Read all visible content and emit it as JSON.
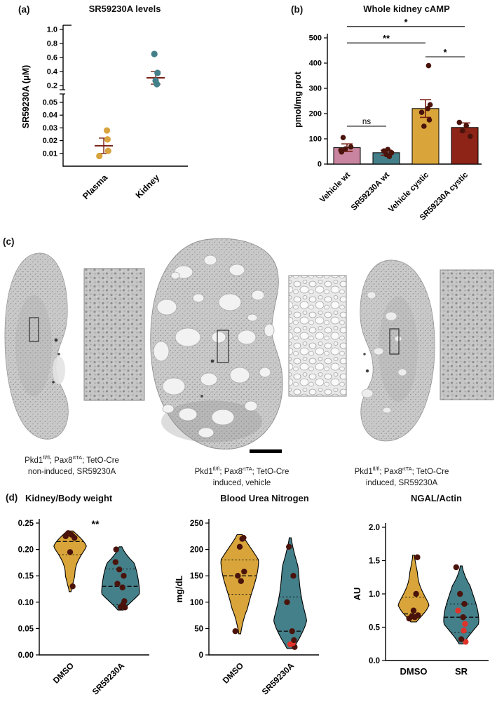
{
  "panels": {
    "a": "(a)",
    "b": "(b)",
    "c": "(c)",
    "d": "(d)"
  },
  "chart_data": [
    {
      "id": "a_levels",
      "type": "scatter",
      "title": "SR59230A levels",
      "ylabel": "SR59230A (μM)",
      "categories": [
        "Plasma",
        "Kidney"
      ],
      "axis_break": {
        "lower_ticks": [
          0.01,
          0.02,
          0.03,
          0.04,
          0.05
        ],
        "upper_ticks": [
          0.2,
          0.4,
          0.6,
          0.8,
          1.0
        ]
      },
      "series": [
        {
          "name": "Plasma",
          "color": "#D9A43F",
          "values": [
            0.008,
            0.012,
            0.021,
            0.028
          ],
          "mean": 0.016,
          "sem": 0.006
        },
        {
          "name": "Kidney",
          "color": "#44808A",
          "values": [
            0.22,
            0.27,
            0.38,
            0.65
          ],
          "mean": 0.31,
          "sem": 0.09
        }
      ]
    },
    {
      "id": "b_camp",
      "type": "bar",
      "title": "Whole kidney cAMP",
      "ylabel": "pmol/mg prot",
      "ylim": [
        0,
        500
      ],
      "yticks": [
        0,
        100,
        200,
        300,
        400,
        500
      ],
      "categories": [
        "Vehicle wt",
        "SR59230A wt",
        "Vehicle cystic",
        "SR59230A cystic"
      ],
      "bar_colors": [
        "#C9849F",
        "#44808A",
        "#D9A53A",
        "#8E2418"
      ],
      "values": [
        65,
        45,
        220,
        145
      ],
      "errors": [
        15,
        10,
        35,
        18
      ],
      "points": [
        [
          48,
          55,
          60,
          68,
          105
        ],
        [
          30,
          38,
          45,
          52,
          58
        ],
        [
          150,
          175,
          205,
          220,
          235,
          390
        ],
        [
          110,
          132,
          152,
          165
        ]
      ],
      "point_color": "#4A130B",
      "significance": [
        {
          "label": "*",
          "from": 0,
          "to": 3,
          "level": 545
        },
        {
          "label": "**",
          "from": 0,
          "to": 2,
          "level": 480
        },
        {
          "label": "*",
          "from": 2,
          "to": 3,
          "level": 425
        },
        {
          "label": "ns",
          "from": 0,
          "to": 1,
          "level": 150
        }
      ]
    },
    {
      "id": "d_kbw",
      "type": "violin",
      "title": "Kidney/Body weight",
      "ylabel": "",
      "ylim": [
        0,
        0.25
      ],
      "yticks": [
        0,
        0.05,
        0.1,
        0.15,
        0.2,
        0.25
      ],
      "tick_decimals": 2,
      "categories": [
        "DMSO",
        "SR59230A"
      ],
      "point_color": "#4A130B",
      "violins": [
        {
          "color": "#D9A53A",
          "min": 0.12,
          "max": 0.235,
          "median": 0.215,
          "q1": 0.19,
          "q3": 0.228,
          "points": [
            0.225,
            0.228,
            0.231,
            0.222,
            0.195,
            0.13
          ],
          "red": []
        },
        {
          "color": "#44808A",
          "min": 0.085,
          "max": 0.205,
          "median": 0.13,
          "q1": 0.095,
          "q3": 0.163,
          "points": [
            0.09,
            0.091,
            0.096,
            0.102,
            0.128,
            0.135,
            0.15,
            0.162,
            0.176,
            0.2
          ],
          "red": []
        }
      ],
      "significance": [
        {
          "label": "**",
          "level": 0.242
        }
      ]
    },
    {
      "id": "d_bun",
      "type": "violin",
      "title": "Blood Urea Nitrogen",
      "ylabel": "mg/dL",
      "ylim": [
        0,
        250
      ],
      "yticks": [
        0,
        50,
        100,
        150,
        200,
        250
      ],
      "tick_decimals": 0,
      "categories": [
        "DMSO",
        "SR59230A"
      ],
      "point_color": "#4A130B",
      "violins": [
        {
          "color": "#D9A53A",
          "min": 40,
          "max": 228,
          "median": 150,
          "q1": 115,
          "q3": 180,
          "points": [
            45,
            140,
            150,
            158,
            205,
            220,
            222
          ],
          "red": []
        },
        {
          "color": "#44808A",
          "min": 12,
          "max": 222,
          "median": 45,
          "q1": 20,
          "q3": 110,
          "points": [
            15,
            20,
            22,
            28,
            45,
            100,
            150,
            205
          ],
          "red": [
            1,
            2
          ]
        }
      ],
      "significance": []
    },
    {
      "id": "d_ngal",
      "type": "violin",
      "title": "NGAL/Actin",
      "ylabel": "AU",
      "ylim": [
        0,
        2
      ],
      "yticks": [
        0,
        0.5,
        1,
        1.5,
        2
      ],
      "tick_decimals": 1,
      "categories": [
        "DMSO",
        "SR"
      ],
      "point_color": "#4A130B",
      "violins": [
        {
          "color": "#D9A53A",
          "min": 0.58,
          "max": 1.58,
          "median": 0.7,
          "q1": 0.64,
          "q3": 0.95,
          "points": [
            0.63,
            0.65,
            0.66,
            0.68,
            0.75,
            1.0,
            1.55
          ],
          "red": []
        },
        {
          "color": "#44808A",
          "min": 0.25,
          "max": 1.42,
          "median": 0.65,
          "q1": 0.42,
          "q3": 0.85,
          "points": [
            0.28,
            0.32,
            0.45,
            0.55,
            0.65,
            0.75,
            0.85,
            1.0,
            1.4
          ],
          "red": [
            0,
            2,
            3,
            5
          ]
        }
      ],
      "significance": []
    }
  ],
  "histology": {
    "labels": [
      {
        "gene": "Pkd1",
        "sup1": "fl/fl",
        "mid1": "; Pax8",
        "sup2": "rtTA",
        "mid2": "; TetO-Cre",
        "line2": "non-induced, SR59230A"
      },
      {
        "gene": "Pkd1",
        "sup1": "fl/fl",
        "mid1": "; Pax8",
        "sup2": "rtTA",
        "mid2": "; TetO-Cre",
        "line2": "induced, vehicle"
      },
      {
        "gene": "Pkd1",
        "sup1": "fl/fl",
        "mid1": "; Pax8",
        "sup2": "rtTA",
        "mid2": "; TetO-Cre",
        "line2": "induced, SR59230A"
      }
    ]
  }
}
